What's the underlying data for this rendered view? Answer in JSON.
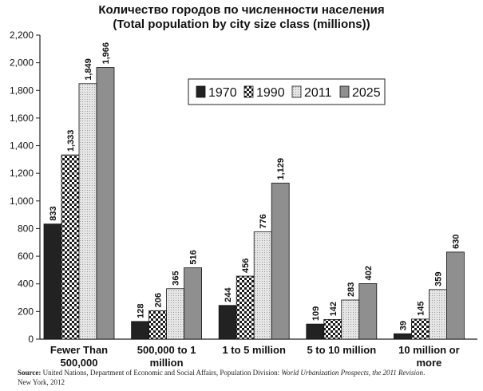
{
  "chart_data": {
    "type": "bar",
    "title": "Количество городов по численности населения",
    "subtitle": "(Total population by city size class (millions))",
    "categories": [
      [
        "Fewer Than",
        "500,000"
      ],
      [
        "500,000 to 1",
        "million"
      ],
      [
        "1 to 5 million"
      ],
      [
        "5 to 10 million"
      ],
      [
        "10 million or",
        "more"
      ]
    ],
    "series": [
      {
        "name": "1970",
        "values": [
          833,
          128,
          244,
          109,
          39
        ],
        "labels": [
          "833",
          "128",
          "244",
          "109",
          "39"
        ]
      },
      {
        "name": "1990",
        "values": [
          1333,
          206,
          456,
          142,
          145
        ],
        "labels": [
          "1,333",
          "206",
          "456",
          "142",
          "145"
        ]
      },
      {
        "name": "2011",
        "values": [
          1849,
          365,
          776,
          283,
          359
        ],
        "labels": [
          "1,849",
          "365",
          "776",
          "283",
          "359"
        ]
      },
      {
        "name": "2025",
        "values": [
          1966,
          516,
          1129,
          402,
          630
        ],
        "labels": [
          "1,966",
          "516",
          "1,129",
          "402",
          "630"
        ]
      }
    ],
    "ylim": [
      0,
      2200
    ],
    "yticks": [
      "0",
      "200",
      "400",
      "600",
      "800",
      "1,000",
      "1,200",
      "1,400",
      "1,600",
      "1,800",
      "2,000",
      "2,200"
    ],
    "xlabel": "",
    "ylabel": "",
    "grid": false,
    "legend_position": "top-right-inside",
    "colors": {
      "1970": "#222222",
      "1990": "checker",
      "2011": "#dcdcdc",
      "2025": "#8f8f8f"
    }
  },
  "source": {
    "label": "Source:",
    "org": "United Nations, Department of Economic and Social Affairs, Population Division:",
    "work": "World Urbanization Prospects, the 2011 Revision",
    "end": ".",
    "line2": "New York, 2012"
  }
}
